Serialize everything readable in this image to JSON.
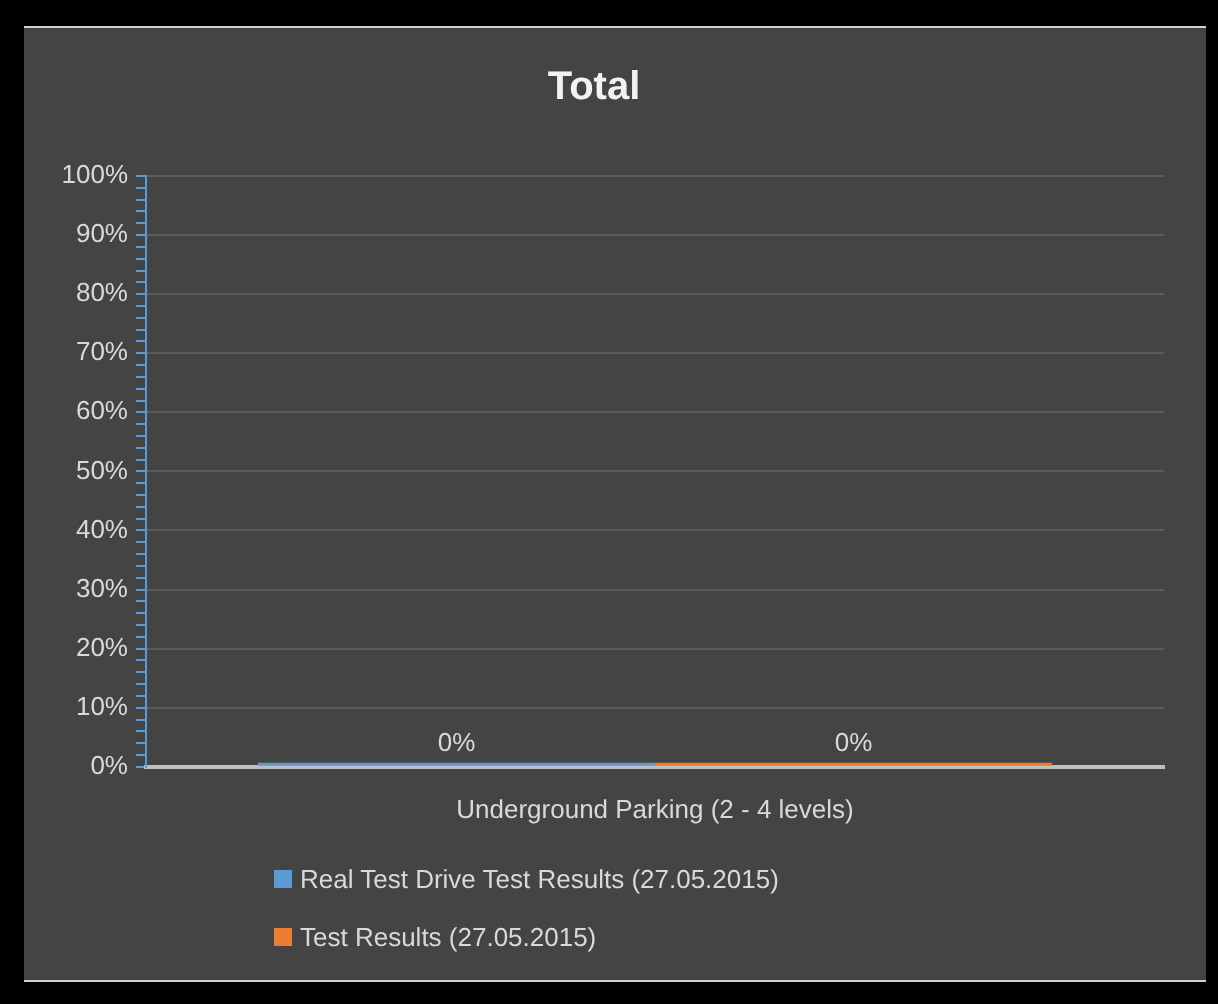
{
  "chart_data": {
    "type": "bar",
    "title": "Total",
    "categories": [
      "Underground Parking (2 - 4 levels)"
    ],
    "series": [
      {
        "name": "Real Test Drive Test Results (27.05.2015)",
        "color": "#5b9bd5",
        "values": [
          0
        ],
        "value_labels": [
          "0%"
        ]
      },
      {
        "name": "Test Results (27.05.2015)",
        "color": "#ed7d31",
        "values": [
          0
        ],
        "value_labels": [
          "0%"
        ]
      }
    ],
    "ylim": [
      0,
      100
    ],
    "yticks": [
      {
        "value": 0,
        "label": "0%"
      },
      {
        "value": 2,
        "label": null
      },
      {
        "value": 4,
        "label": null
      },
      {
        "value": 6,
        "label": null
      },
      {
        "value": 8,
        "label": null
      },
      {
        "value": 10,
        "label": "10%"
      },
      {
        "value": 12,
        "label": null
      },
      {
        "value": 14,
        "label": null
      },
      {
        "value": 16,
        "label": null
      },
      {
        "value": 18,
        "label": null
      },
      {
        "value": 20,
        "label": "20%"
      },
      {
        "value": 22,
        "label": null
      },
      {
        "value": 24,
        "label": null
      },
      {
        "value": 26,
        "label": null
      },
      {
        "value": 28,
        "label": null
      },
      {
        "value": 30,
        "label": "30%"
      },
      {
        "value": 32,
        "label": null
      },
      {
        "value": 34,
        "label": null
      },
      {
        "value": 36,
        "label": null
      },
      {
        "value": 38,
        "label": null
      },
      {
        "value": 40,
        "label": "40%"
      },
      {
        "value": 42,
        "label": null
      },
      {
        "value": 44,
        "label": null
      },
      {
        "value": 46,
        "label": null
      },
      {
        "value": 48,
        "label": null
      },
      {
        "value": 50,
        "label": "50%"
      },
      {
        "value": 52,
        "label": null
      },
      {
        "value": 54,
        "label": null
      },
      {
        "value": 56,
        "label": null
      },
      {
        "value": 58,
        "label": null
      },
      {
        "value": 60,
        "label": "60%"
      },
      {
        "value": 62,
        "label": null
      },
      {
        "value": 64,
        "label": null
      },
      {
        "value": 66,
        "label": null
      },
      {
        "value": 68,
        "label": null
      },
      {
        "value": 70,
        "label": "70%"
      },
      {
        "value": 72,
        "label": null
      },
      {
        "value": 74,
        "label": null
      },
      {
        "value": 76,
        "label": null
      },
      {
        "value": 78,
        "label": null
      },
      {
        "value": 80,
        "label": "80%"
      },
      {
        "value": 82,
        "label": null
      },
      {
        "value": 84,
        "label": null
      },
      {
        "value": 86,
        "label": null
      },
      {
        "value": 88,
        "label": null
      },
      {
        "value": 90,
        "label": "90%"
      },
      {
        "value": 92,
        "label": null
      },
      {
        "value": 94,
        "label": null
      },
      {
        "value": 96,
        "label": null
      },
      {
        "value": 98,
        "label": null
      },
      {
        "value": 100,
        "label": "100%"
      }
    ],
    "grid": "y",
    "legend": "bottom"
  }
}
